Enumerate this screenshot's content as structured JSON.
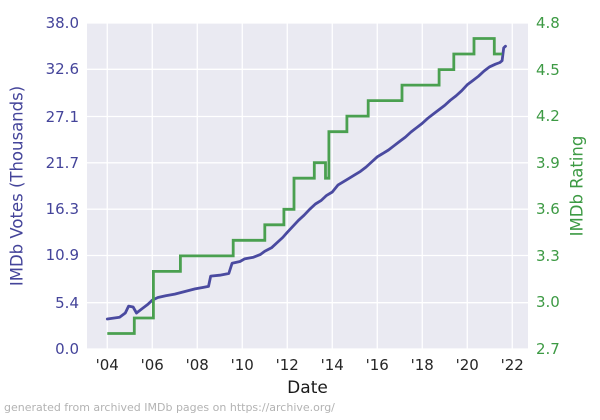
{
  "chart_data": {
    "type": "line",
    "title": "",
    "xlabel": "Date",
    "ylabel_left": "IMDb Votes (Thousands)",
    "ylabel_right": "IMDb Rating",
    "footer": "generated from archived IMDb pages on https://archive.org/",
    "grid": true,
    "legend": "none",
    "x_domain": [
      2003.1,
      2022.7
    ],
    "y_left_domain": [
      0.0,
      38.0
    ],
    "y_right_domain": [
      2.7,
      4.8
    ],
    "x_ticks": [
      2004,
      2006,
      2008,
      2010,
      2012,
      2014,
      2016,
      2018,
      2020,
      2022
    ],
    "x_tick_labels": [
      "'04",
      "'06",
      "'08",
      "'10",
      "'12",
      "'14",
      "'16",
      "'18",
      "'20",
      "'22"
    ],
    "y_left_ticks": [
      0.0,
      5.4,
      10.9,
      16.3,
      21.7,
      27.1,
      32.6,
      38.0
    ],
    "y_left_tick_labels": [
      "0.0",
      "5.4",
      "10.9",
      "16.3",
      "21.7",
      "27.1",
      "32.6",
      "38.0"
    ],
    "y_right_ticks": [
      2.7,
      3.0,
      3.3,
      3.6,
      3.9,
      4.2,
      4.5,
      4.8
    ],
    "y_right_tick_labels": [
      "2.7",
      "3.0",
      "3.3",
      "3.6",
      "3.9",
      "4.2",
      "4.5",
      "4.8"
    ],
    "colors": {
      "votes_line": "#4a4aa0",
      "votes_text": "#44449a",
      "rating_line": "#4aa050",
      "rating_text": "#3d9a44",
      "x_tick_text": "#262626",
      "xlabel_text": "#1a1a1a",
      "plot_bg": "#eaeaf2",
      "grid": "#ffffff",
      "footer_text": "#b3b3b3",
      "figure_bg": "#ffffff"
    },
    "series": [
      {
        "name": "IMDb Votes (Thousands)",
        "axis": "left",
        "style": "line",
        "points": [
          [
            2004.0,
            3.5
          ],
          [
            2004.55,
            3.7
          ],
          [
            2004.8,
            4.2
          ],
          [
            2004.95,
            5.0
          ],
          [
            2005.15,
            4.9
          ],
          [
            2005.3,
            4.2
          ],
          [
            2005.55,
            4.7
          ],
          [
            2005.8,
            5.2
          ],
          [
            2006.0,
            5.7
          ],
          [
            2006.25,
            6.0
          ],
          [
            2006.6,
            6.2
          ],
          [
            2007.0,
            6.4
          ],
          [
            2007.45,
            6.7
          ],
          [
            2007.9,
            7.0
          ],
          [
            2008.3,
            7.2
          ],
          [
            2008.5,
            7.3
          ],
          [
            2008.6,
            8.5
          ],
          [
            2009.0,
            8.6
          ],
          [
            2009.4,
            8.8
          ],
          [
            2009.55,
            10.0
          ],
          [
            2009.9,
            10.2
          ],
          [
            2010.1,
            10.5
          ],
          [
            2010.5,
            10.7
          ],
          [
            2010.8,
            11.0
          ],
          [
            2011.0,
            11.4
          ],
          [
            2011.3,
            11.8
          ],
          [
            2011.55,
            12.4
          ],
          [
            2011.8,
            13.0
          ],
          [
            2012.0,
            13.6
          ],
          [
            2012.25,
            14.3
          ],
          [
            2012.5,
            15.0
          ],
          [
            2012.75,
            15.6
          ],
          [
            2013.0,
            16.3
          ],
          [
            2013.25,
            16.9
          ],
          [
            2013.5,
            17.3
          ],
          [
            2013.75,
            17.9
          ],
          [
            2014.0,
            18.3
          ],
          [
            2014.25,
            19.1
          ],
          [
            2014.5,
            19.5
          ],
          [
            2014.75,
            19.9
          ],
          [
            2015.0,
            20.3
          ],
          [
            2015.25,
            20.7
          ],
          [
            2015.5,
            21.2
          ],
          [
            2015.75,
            21.8
          ],
          [
            2016.0,
            22.4
          ],
          [
            2016.25,
            22.8
          ],
          [
            2016.5,
            23.2
          ],
          [
            2016.75,
            23.7
          ],
          [
            2017.0,
            24.2
          ],
          [
            2017.25,
            24.7
          ],
          [
            2017.5,
            25.3
          ],
          [
            2017.75,
            25.8
          ],
          [
            2018.0,
            26.3
          ],
          [
            2018.25,
            26.9
          ],
          [
            2018.5,
            27.4
          ],
          [
            2018.75,
            27.9
          ],
          [
            2019.0,
            28.4
          ],
          [
            2019.25,
            29.0
          ],
          [
            2019.5,
            29.5
          ],
          [
            2019.75,
            30.1
          ],
          [
            2020.0,
            30.8
          ],
          [
            2020.25,
            31.3
          ],
          [
            2020.5,
            31.8
          ],
          [
            2020.75,
            32.4
          ],
          [
            2021.0,
            32.9
          ],
          [
            2021.25,
            33.2
          ],
          [
            2021.45,
            33.4
          ],
          [
            2021.55,
            33.6
          ],
          [
            2021.62,
            35.1
          ],
          [
            2021.7,
            35.3
          ]
        ]
      },
      {
        "name": "IMDb Rating",
        "axis": "right",
        "style": "step-post",
        "end_x": 2021.55,
        "points": [
          [
            2004.0,
            2.8
          ],
          [
            2005.2,
            2.9
          ],
          [
            2006.05,
            3.2
          ],
          [
            2007.25,
            3.3
          ],
          [
            2009.6,
            3.4
          ],
          [
            2011.0,
            3.5
          ],
          [
            2011.85,
            3.6
          ],
          [
            2012.3,
            3.8
          ],
          [
            2013.2,
            3.9
          ],
          [
            2013.7,
            3.8
          ],
          [
            2013.85,
            4.1
          ],
          [
            2014.65,
            4.2
          ],
          [
            2015.6,
            4.3
          ],
          [
            2017.1,
            4.4
          ],
          [
            2018.75,
            4.5
          ],
          [
            2019.4,
            4.6
          ],
          [
            2020.3,
            4.7
          ],
          [
            2021.2,
            4.6
          ]
        ]
      }
    ]
  }
}
